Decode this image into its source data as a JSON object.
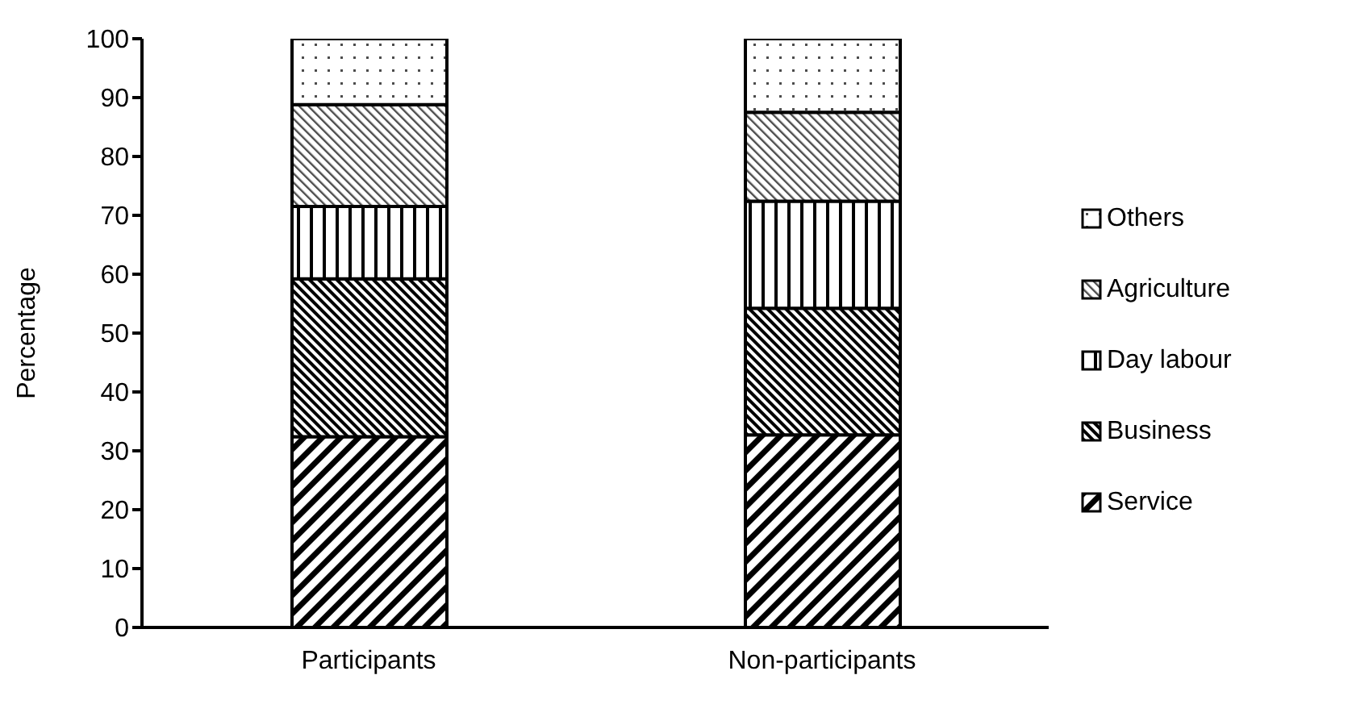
{
  "chart_data": {
    "type": "bar",
    "stacked": true,
    "ylabel": "Percentage",
    "categories": [
      "Participants",
      "Non-participants"
    ],
    "series": [
      {
        "name": "Service",
        "color": "#000000",
        "values": [
          32.4,
          32.7
        ]
      },
      {
        "name": "Business",
        "color": "#000000",
        "values": [
          26.8,
          21.5
        ]
      },
      {
        "name": "Day labour",
        "color": "#000000",
        "values": [
          12.3,
          18.2
        ]
      },
      {
        "name": "Agriculture",
        "color": "#000000",
        "values": [
          17.3,
          15.1
        ]
      },
      {
        "name": "Others",
        "color": "#000000",
        "values": [
          11.2,
          12.5
        ]
      }
    ],
    "ylim": [
      0,
      100
    ],
    "yticks": [
      0,
      10,
      20,
      30,
      40,
      50,
      60,
      70,
      80,
      90,
      100
    ],
    "grid": false,
    "legend": "right"
  }
}
